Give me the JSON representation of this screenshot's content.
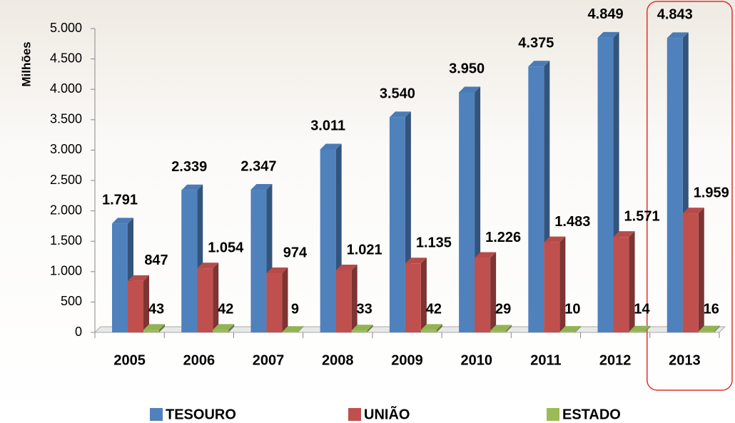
{
  "chart_data": {
    "type": "bar3d",
    "y_label": "Milhões",
    "categories": [
      "2005",
      "2006",
      "2007",
      "2008",
      "2009",
      "2010",
      "2011",
      "2012",
      "2013"
    ],
    "series": [
      {
        "name": "TESOURO",
        "color": "#4f81bd",
        "values": [
          1791,
          2339,
          2347,
          3011,
          3540,
          3950,
          4375,
          4849,
          4843
        ],
        "value_labels": [
          "1.791",
          "2.339",
          "2.347",
          "3.011",
          "3.540",
          "3.950",
          "4.375",
          "4.849",
          "4.843"
        ]
      },
      {
        "name": "UNIÃO",
        "color": "#c0504d",
        "values": [
          847,
          1054,
          974,
          1021,
          1135,
          1226,
          1483,
          1571,
          1959
        ],
        "value_labels": [
          "847",
          "1.054",
          "974",
          "1.021",
          "1.135",
          "1.226",
          "1.483",
          "1.571",
          "1.959"
        ]
      },
      {
        "name": "ESTADO",
        "color": "#9bbb59",
        "values": [
          43,
          42,
          9,
          33,
          42,
          29,
          10,
          14,
          16
        ],
        "value_labels": [
          "43",
          "42",
          "9",
          "33",
          "42",
          "29",
          "10",
          "14",
          "16"
        ]
      }
    ],
    "ylim": [
      0,
      5000
    ],
    "yticks": [
      0,
      500,
      {
        "value": 1000,
        "label": "1.000"
      },
      {
        "value": 1500,
        "label": "1.500"
      },
      {
        "value": 2000,
        "label": "2.000"
      },
      {
        "value": 2500,
        "label": "2.500"
      },
      {
        "value": 3000,
        "label": "3.000"
      },
      {
        "value": 3500,
        "label": "3.500"
      },
      {
        "value": 4000,
        "label": "4.000"
      },
      {
        "value": 4500,
        "label": "4.500"
      },
      {
        "value": 5000,
        "label": "5.000"
      }
    ],
    "legend": "bottom"
  }
}
